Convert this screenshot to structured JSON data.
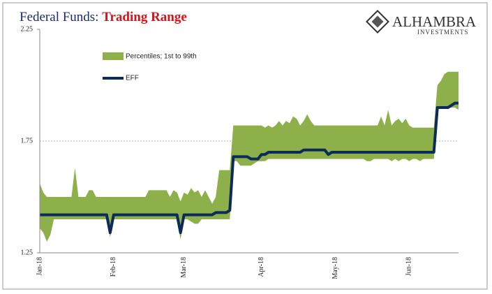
{
  "logo": {
    "name": "ALHAMBRA",
    "tagline": "INVESTMENTS"
  },
  "chart_data": {
    "type": "band-line",
    "title": "Federal Funds:",
    "title_highlight": "Trading Range",
    "categories": [
      "Jan-18",
      null,
      null,
      null,
      null,
      null,
      null,
      null,
      null,
      null,
      null,
      null,
      null,
      null,
      null,
      null,
      null,
      null,
      null,
      null,
      null,
      "Feb-18",
      null,
      null,
      null,
      null,
      null,
      null,
      null,
      null,
      null,
      null,
      null,
      null,
      null,
      null,
      null,
      null,
      null,
      null,
      null,
      "Mar-18",
      null,
      null,
      null,
      null,
      null,
      null,
      null,
      null,
      null,
      null,
      null,
      null,
      null,
      null,
      null,
      null,
      null,
      null,
      null,
      null,
      null,
      "Apr-18",
      null,
      null,
      null,
      null,
      null,
      null,
      null,
      null,
      null,
      null,
      null,
      null,
      null,
      null,
      null,
      null,
      null,
      null,
      null,
      null,
      "May-18",
      null,
      null,
      null,
      null,
      null,
      null,
      null,
      null,
      null,
      null,
      null,
      null,
      null,
      null,
      null,
      null,
      null,
      null,
      null,
      null,
      "Jun-18",
      null,
      null,
      null,
      null,
      null,
      null,
      null,
      null,
      null,
      null,
      null,
      null,
      null,
      null
    ],
    "series": [
      {
        "name": "Percentiles; 1st to 99th",
        "color": "#8db04a",
        "high": [
          1.56,
          1.52,
          1.5,
          1.5,
          1.5,
          1.5,
          1.5,
          1.5,
          1.5,
          1.5,
          1.63,
          1.5,
          1.5,
          1.5,
          1.53,
          1.53,
          1.5,
          1.5,
          1.5,
          1.5,
          1.5,
          1.5,
          1.5,
          1.5,
          1.5,
          1.5,
          1.5,
          1.5,
          1.5,
          1.5,
          1.5,
          1.53,
          1.53,
          1.53,
          1.53,
          1.53,
          1.53,
          1.5,
          1.53,
          1.52,
          1.48,
          1.52,
          1.51,
          1.54,
          1.52,
          1.53,
          1.5,
          1.53,
          1.5,
          1.47,
          1.5,
          1.62,
          1.62,
          1.62,
          1.62,
          1.82,
          1.82,
          1.82,
          1.82,
          1.82,
          1.82,
          1.82,
          1.82,
          1.82,
          1.81,
          1.82,
          1.81,
          1.82,
          1.84,
          1.82,
          1.84,
          1.83,
          1.86,
          1.85,
          1.82,
          1.84,
          1.87,
          1.84,
          1.82,
          1.82,
          1.82,
          1.82,
          1.82,
          1.82,
          1.82,
          1.82,
          1.82,
          1.82,
          1.82,
          1.82,
          1.82,
          1.82,
          1.82,
          1.82,
          1.82,
          1.82,
          1.82,
          1.86,
          1.82,
          1.89,
          1.82,
          1.84,
          1.85,
          1.83,
          1.85,
          1.82,
          1.81,
          1.81,
          1.81,
          1.81,
          1.81,
          1.81,
          1.81,
          2.0,
          2.02,
          2.05,
          2.06,
          2.06,
          2.06,
          2.06
        ],
        "low": [
          1.36,
          1.34,
          1.3,
          1.33,
          1.4,
          1.4,
          1.4,
          1.4,
          1.4,
          1.4,
          1.4,
          1.4,
          1.4,
          1.4,
          1.4,
          1.4,
          1.4,
          1.4,
          1.4,
          1.4,
          1.32,
          1.4,
          1.4,
          1.4,
          1.4,
          1.4,
          1.4,
          1.4,
          1.4,
          1.4,
          1.4,
          1.4,
          1.4,
          1.4,
          1.4,
          1.4,
          1.4,
          1.4,
          1.4,
          1.4,
          1.31,
          1.4,
          1.4,
          1.39,
          1.38,
          1.38,
          1.4,
          1.4,
          1.4,
          1.4,
          1.4,
          1.4,
          1.4,
          1.4,
          1.4,
          1.66,
          1.66,
          1.64,
          1.64,
          1.64,
          1.64,
          1.65,
          1.66,
          1.66,
          1.66,
          1.67,
          1.67,
          1.67,
          1.67,
          1.67,
          1.67,
          1.67,
          1.67,
          1.67,
          1.67,
          1.67,
          1.67,
          1.67,
          1.67,
          1.67,
          1.67,
          1.67,
          1.67,
          1.67,
          1.67,
          1.67,
          1.67,
          1.67,
          1.67,
          1.67,
          1.67,
          1.67,
          1.67,
          1.66,
          1.66,
          1.67,
          1.67,
          1.67,
          1.67,
          1.67,
          1.66,
          1.67,
          1.66,
          1.67,
          1.67,
          1.66,
          1.67,
          1.67,
          1.66,
          1.67,
          1.67,
          1.67,
          1.67,
          1.9,
          1.9,
          1.9,
          1.9,
          1.9,
          1.9,
          1.89
        ]
      },
      {
        "name": "EFF",
        "color": "#0c2a5a",
        "values": [
          1.42,
          1.42,
          1.42,
          1.42,
          1.42,
          1.42,
          1.42,
          1.42,
          1.42,
          1.42,
          1.42,
          1.42,
          1.42,
          1.42,
          1.42,
          1.42,
          1.42,
          1.42,
          1.42,
          1.42,
          1.34,
          1.42,
          1.42,
          1.42,
          1.42,
          1.42,
          1.42,
          1.42,
          1.42,
          1.42,
          1.42,
          1.42,
          1.42,
          1.42,
          1.42,
          1.42,
          1.42,
          1.42,
          1.42,
          1.42,
          1.34,
          1.42,
          1.42,
          1.42,
          1.42,
          1.42,
          1.42,
          1.42,
          1.42,
          1.42,
          1.43,
          1.43,
          1.43,
          1.43,
          1.44,
          1.68,
          1.68,
          1.68,
          1.68,
          1.68,
          1.67,
          1.67,
          1.67,
          1.69,
          1.69,
          1.7,
          1.7,
          1.7,
          1.7,
          1.7,
          1.7,
          1.7,
          1.7,
          1.7,
          1.7,
          1.71,
          1.71,
          1.71,
          1.71,
          1.71,
          1.71,
          1.71,
          1.69,
          1.7,
          1.7,
          1.7,
          1.7,
          1.7,
          1.7,
          1.7,
          1.7,
          1.7,
          1.7,
          1.7,
          1.7,
          1.7,
          1.7,
          1.7,
          1.7,
          1.7,
          1.7,
          1.7,
          1.7,
          1.7,
          1.7,
          1.7,
          1.7,
          1.7,
          1.7,
          1.7,
          1.7,
          1.7,
          1.7,
          1.9,
          1.9,
          1.9,
          1.9,
          1.91,
          1.92,
          1.92
        ]
      }
    ],
    "ylim": [
      1.25,
      2.25
    ],
    "yticks": [
      1.25,
      1.75,
      2.25
    ],
    "grid": true
  }
}
